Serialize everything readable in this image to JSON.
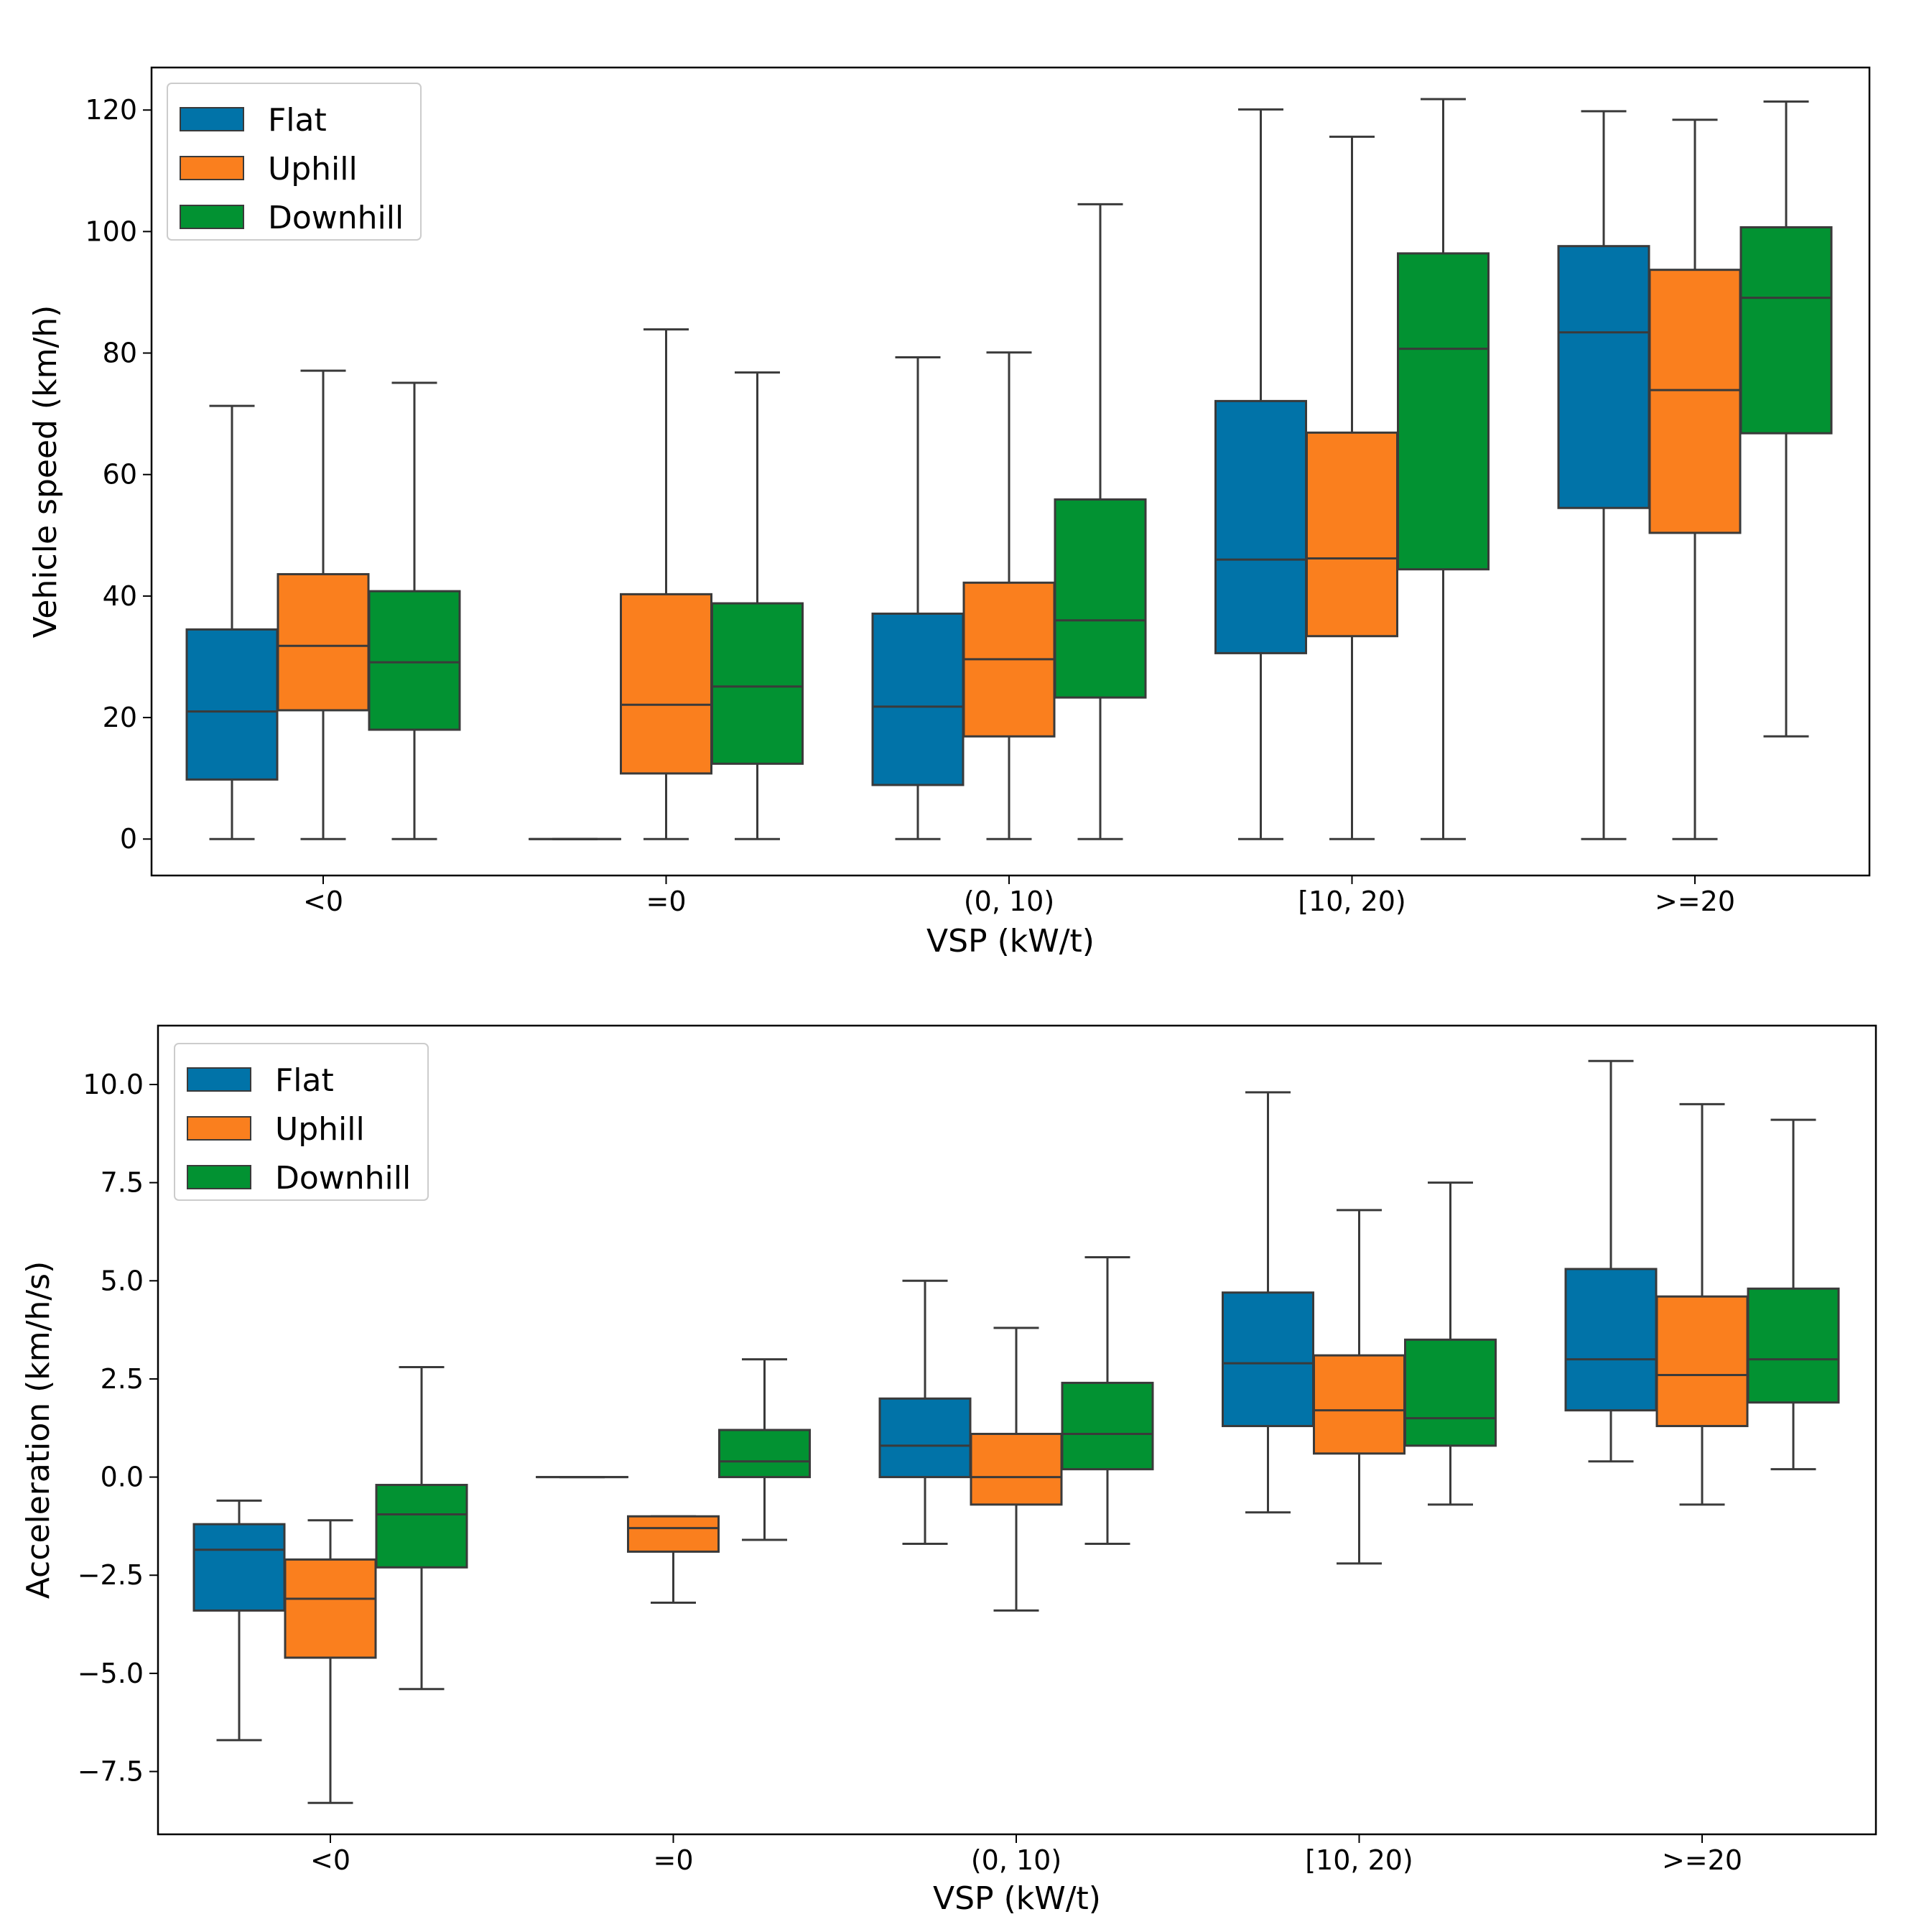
{
  "colors": {
    "Flat": "#0173a8",
    "Uphill": "#fa7f1e",
    "Downhill": "#029232",
    "line": "#3a3a3a"
  },
  "chart_data": [
    {
      "type": "box",
      "title": "",
      "xlabel": "VSP (kW/t)",
      "ylabel": "Vehicle speed (km/h)",
      "ylim": [
        -6,
        127
      ],
      "yticks": [
        "0",
        "20",
        "40",
        "60",
        "80",
        "100",
        "120"
      ],
      "ytick_values": [
        0,
        20,
        40,
        60,
        80,
        100,
        120
      ],
      "categories": [
        "<0",
        "=0",
        "(0, 10)",
        "[10, 20)",
        ">=20"
      ],
      "legend": {
        "location": "upper-left",
        "entries": [
          "Flat",
          "Uphill",
          "Downhill"
        ]
      },
      "series": [
        {
          "name": "Flat",
          "boxes": [
            {
              "whislo": 0,
              "q1": 9.8,
              "med": 21,
              "q3": 34.5,
              "whishi": 71.3
            },
            {
              "whislo": 0,
              "q1": 0,
              "med": 0,
              "q3": 0,
              "whishi": 0
            },
            {
              "whislo": 0,
              "q1": 8.9,
              "med": 21.8,
              "q3": 37.1,
              "whishi": 79.3
            },
            {
              "whislo": 0,
              "q1": 30.6,
              "med": 46,
              "q3": 72.1,
              "whishi": 120.1
            },
            {
              "whislo": 0,
              "q1": 54.5,
              "med": 83.4,
              "q3": 97.6,
              "whishi": 119.8
            }
          ]
        },
        {
          "name": "Uphill",
          "boxes": [
            {
              "whislo": 0,
              "q1": 21.2,
              "med": 31.8,
              "q3": 43.6,
              "whishi": 77.1
            },
            {
              "whislo": 0,
              "q1": 10.8,
              "med": 22.1,
              "q3": 40.3,
              "whishi": 83.9
            },
            {
              "whislo": 0,
              "q1": 16.9,
              "med": 29.6,
              "q3": 42.2,
              "whishi": 80.1
            },
            {
              "whislo": 0,
              "q1": 33.4,
              "med": 46.2,
              "q3": 66.9,
              "whishi": 115.6
            },
            {
              "whislo": 0,
              "q1": 50.4,
              "med": 73.9,
              "q3": 93.7,
              "whishi": 118.4
            }
          ]
        },
        {
          "name": "Downhill",
          "boxes": [
            {
              "whislo": 0,
              "q1": 18,
              "med": 29.1,
              "q3": 40.8,
              "whishi": 75.1
            },
            {
              "whislo": 0,
              "q1": 12.4,
              "med": 25.1,
              "q3": 38.8,
              "whishi": 76.8
            },
            {
              "whislo": 0,
              "q1": 23.3,
              "med": 36,
              "q3": 55.9,
              "whishi": 104.5
            },
            {
              "whislo": 0,
              "q1": 44.4,
              "med": 80.7,
              "q3": 96.4,
              "whishi": 121.8
            },
            {
              "whislo": 16.9,
              "q1": 66.8,
              "med": 89.1,
              "q3": 100.7,
              "whishi": 121.4
            }
          ]
        }
      ]
    },
    {
      "type": "box",
      "title": "",
      "xlabel": "VSP (kW/t)",
      "ylabel": "Acceleration (km/h/s)",
      "ylim": [
        -9.1,
        11.5
      ],
      "yticks": [
        "−7.5",
        "−5.0",
        "−2.5",
        "0.0",
        "2.5",
        "5.0",
        "7.5",
        "10.0"
      ],
      "ytick_values": [
        -7.5,
        -5.0,
        -2.5,
        0.0,
        2.5,
        5.0,
        7.5,
        10.0
      ],
      "categories": [
        "<0",
        "=0",
        "(0, 10)",
        "[10, 20)",
        ">=20"
      ],
      "legend": {
        "location": "upper-left",
        "entries": [
          "Flat",
          "Uphill",
          "Downhill"
        ]
      },
      "series": [
        {
          "name": "Flat",
          "boxes": [
            {
              "whislo": -6.7,
              "q1": -3.4,
              "med": -1.85,
              "q3": -1.2,
              "whishi": -0.6
            },
            {
              "whislo": 0,
              "q1": 0,
              "med": 0,
              "q3": 0,
              "whishi": 0
            },
            {
              "whislo": -1.7,
              "q1": 0,
              "med": 0.8,
              "q3": 2.0,
              "whishi": 5.0
            },
            {
              "whislo": -0.9,
              "q1": 1.3,
              "med": 2.9,
              "q3": 4.7,
              "whishi": 9.8
            },
            {
              "whislo": 0.4,
              "q1": 1.7,
              "med": 3.0,
              "q3": 5.3,
              "whishi": 10.6
            }
          ]
        },
        {
          "name": "Uphill",
          "boxes": [
            {
              "whislo": -8.3,
              "q1": -4.6,
              "med": -3.1,
              "q3": -2.1,
              "whishi": -1.1
            },
            {
              "whislo": -3.2,
              "q1": -1.9,
              "med": -1.3,
              "q3": -1.0,
              "whishi": -1.0
            },
            {
              "whislo": -3.4,
              "q1": -0.7,
              "med": 0.0,
              "q3": 1.1,
              "whishi": 3.8
            },
            {
              "whislo": -2.2,
              "q1": 0.6,
              "med": 1.7,
              "q3": 3.1,
              "whishi": 6.8
            },
            {
              "whislo": -0.7,
              "q1": 1.3,
              "med": 2.6,
              "q3": 4.6,
              "whishi": 9.5
            }
          ]
        },
        {
          "name": "Downhill",
          "boxes": [
            {
              "whislo": -5.4,
              "q1": -2.3,
              "med": -0.95,
              "q3": -0.2,
              "whishi": 2.8
            },
            {
              "whislo": -1.6,
              "q1": 0.0,
              "med": 0.4,
              "q3": 1.2,
              "whishi": 3.0
            },
            {
              "whislo": -1.7,
              "q1": 0.2,
              "med": 1.1,
              "q3": 2.4,
              "whishi": 5.6
            },
            {
              "whislo": -0.7,
              "q1": 0.8,
              "med": 1.5,
              "q3": 3.5,
              "whishi": 7.5
            },
            {
              "whislo": 0.2,
              "q1": 1.9,
              "med": 3.0,
              "q3": 4.8,
              "whishi": 9.1
            }
          ]
        }
      ]
    }
  ]
}
